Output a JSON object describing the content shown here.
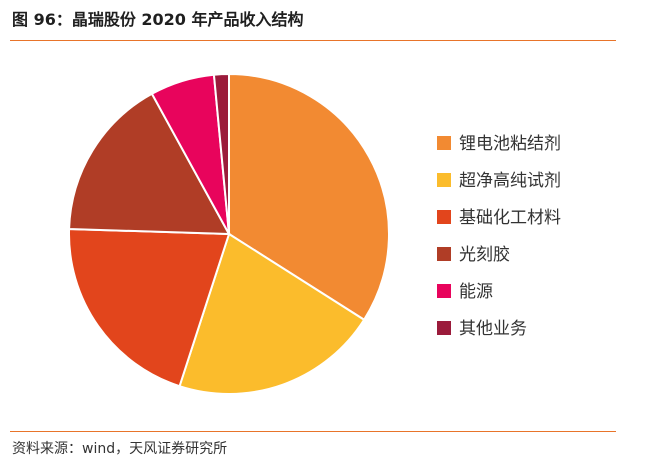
{
  "title": "图 96：晶瑞股份 2020 年产品收入结构",
  "source": "资料来源：wind，天风证券研究所",
  "chart_data": {
    "type": "pie",
    "categories": [
      "锂电池粘结剂",
      "超净高纯试剂",
      "基础化工材料",
      "光刻胶",
      "能源",
      "其他业务"
    ],
    "values": [
      34.0,
      21.0,
      20.5,
      16.5,
      6.5,
      1.5
    ],
    "colors": [
      "#f28a32",
      "#fbbc2c",
      "#e2451c",
      "#b03d26",
      "#e8045c",
      "#9b1b3b"
    ],
    "legend_position": "right"
  }
}
